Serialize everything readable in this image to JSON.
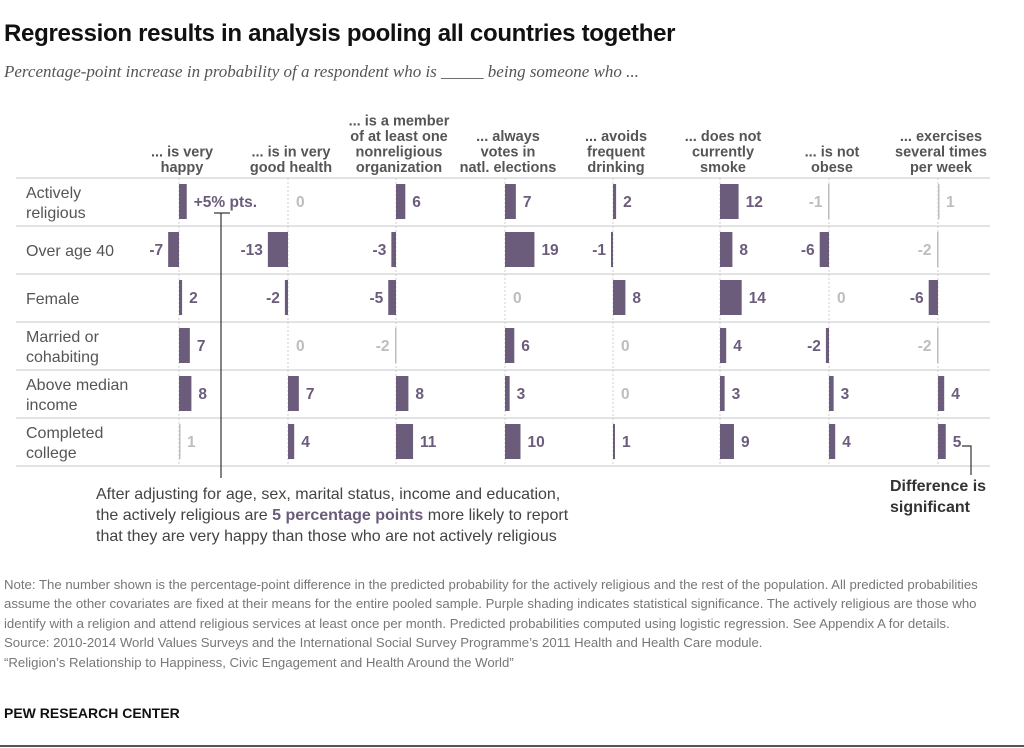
{
  "title": "Regression results in analysis pooling all countries together",
  "subtitle": "Percentage-point increase in probability of a respondent who is _____ being someone who ...",
  "chart_data": {
    "type": "bar",
    "orientation": "horizontal-small-multiples",
    "columns": [
      [
        "... is very",
        "happy"
      ],
      [
        "... is in very",
        "good health"
      ],
      [
        "... is a member",
        "of at least one",
        "nonreligious",
        "organization"
      ],
      [
        "... always",
        "votes in",
        "natl. elections"
      ],
      [
        "... avoids",
        "frequent",
        "drinking"
      ],
      [
        "... does not",
        "currently",
        "smoke"
      ],
      [
        "... is not",
        "obese"
      ],
      [
        "... exercises",
        "several times",
        "per week"
      ]
    ],
    "rows": [
      {
        "label": [
          "Actively",
          "religious"
        ],
        "values": [
          5,
          0,
          6,
          7,
          2,
          12,
          -1,
          1
        ],
        "significant": [
          true,
          false,
          true,
          true,
          true,
          true,
          false,
          false
        ]
      },
      {
        "label": [
          "Over age 40"
        ],
        "values": [
          -7,
          -13,
          -3,
          19,
          -1,
          8,
          -6,
          -2
        ],
        "significant": [
          true,
          true,
          true,
          true,
          true,
          true,
          true,
          false
        ]
      },
      {
        "label": [
          "Female"
        ],
        "values": [
          2,
          -2,
          -5,
          0,
          8,
          14,
          0,
          -6
        ],
        "significant": [
          true,
          true,
          true,
          false,
          true,
          true,
          false,
          true
        ]
      },
      {
        "label": [
          "Married or",
          "cohabiting"
        ],
        "values": [
          7,
          0,
          -2,
          6,
          0,
          4,
          -2,
          -2
        ],
        "significant": [
          true,
          false,
          false,
          true,
          false,
          true,
          true,
          false
        ]
      },
      {
        "label": [
          "Above median",
          "income"
        ],
        "values": [
          8,
          7,
          8,
          3,
          0,
          3,
          3,
          4
        ],
        "significant": [
          true,
          true,
          true,
          true,
          false,
          true,
          true,
          true
        ]
      },
      {
        "label": [
          "Completed",
          "college"
        ],
        "values": [
          1,
          4,
          11,
          10,
          1,
          9,
          4,
          5
        ],
        "significant": [
          false,
          true,
          true,
          true,
          true,
          true,
          true,
          true
        ]
      }
    ],
    "first_cell_label": "+5% pts.",
    "colors": {
      "significant": "#6b5c7b",
      "not_significant": "#bdbdbd"
    }
  },
  "annotation": {
    "line1": "After adjusting for age, sex, marital status, income and education,",
    "line2a": "the actively religious are ",
    "line2b": "5 percentage points",
    "line2c": " more likely to report",
    "line3": "that they are very happy than those who are not actively religious"
  },
  "significance_note": {
    "line1": "Difference is",
    "line2": "significant"
  },
  "note": "Note: The number shown is the percentage-point difference in the predicted probability for the actively religious and the rest of the population. All predicted probabilities assume the other covariates are fixed at their means for the entire pooled sample. Purple shading indicates statistical significance. The actively religious are those who identify with a religion and attend religious services at least once per month. Predicted probabilities computed using logistic regression. See Appendix A for details.",
  "source": "Source: 2010-2014 World Values Surveys and the International Social Survey Programme’s 2011 Health and Health Care module.",
  "report": "“Religion’s Relationship to Happiness, Civic Engagement and Health Around the World”",
  "org": "PEW RESEARCH CENTER"
}
